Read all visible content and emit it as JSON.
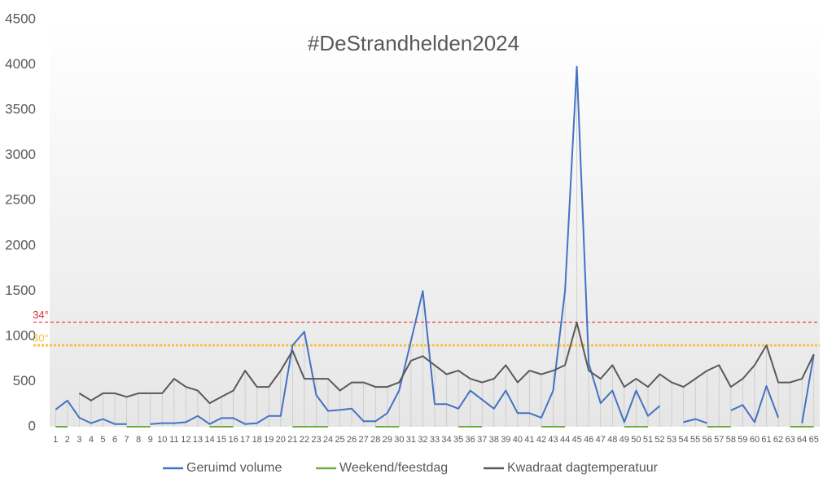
{
  "chart_data": {
    "type": "line",
    "title": "#DeStrandhelden2024",
    "categories": [
      "1",
      "2",
      "3",
      "4",
      "5",
      "6",
      "7",
      "8",
      "9",
      "10",
      "11",
      "12",
      "13",
      "14",
      "15",
      "16",
      "17",
      "18",
      "19",
      "20",
      "21",
      "22",
      "23",
      "24",
      "25",
      "26",
      "27",
      "28",
      "29",
      "30",
      "31",
      "32",
      "33",
      "34",
      "35",
      "36",
      "37",
      "38",
      "39",
      "40",
      "41",
      "42",
      "43",
      "44",
      "45",
      "46",
      "47",
      "48",
      "49",
      "50",
      "51",
      "52",
      "53",
      "54",
      "55",
      "56",
      "57",
      "58",
      "59",
      "60",
      "61",
      "62",
      "63",
      "64",
      "65"
    ],
    "series": [
      {
        "name": "Geruimd volume",
        "color": "#4472c4",
        "values": [
          190,
          290,
          100,
          40,
          85,
          30,
          30,
          null,
          30,
          40,
          40,
          50,
          120,
          30,
          95,
          95,
          30,
          40,
          120,
          120,
          900,
          1050,
          350,
          175,
          185,
          200,
          60,
          60,
          150,
          400,
          950,
          1500,
          250,
          250,
          200,
          400,
          300,
          200,
          400,
          150,
          150,
          100,
          400,
          1500,
          3980,
          700,
          260,
          400,
          50,
          400,
          120,
          230,
          null,
          50,
          85,
          40,
          null,
          180,
          240,
          50,
          450,
          100,
          null,
          40,
          800
        ]
      },
      {
        "name": "Weekend/feestdag",
        "color": "#70ad47",
        "values": [
          0,
          0,
          null,
          null,
          null,
          null,
          0,
          0,
          0,
          null,
          null,
          null,
          null,
          0,
          0,
          0,
          null,
          null,
          null,
          null,
          0,
          0,
          0,
          0,
          null,
          null,
          null,
          0,
          0,
          0,
          null,
          null,
          null,
          null,
          0,
          0,
          0,
          null,
          null,
          null,
          null,
          0,
          0,
          0,
          null,
          null,
          null,
          null,
          0,
          0,
          0,
          null,
          null,
          null,
          null,
          0,
          0,
          0,
          null,
          null,
          null,
          null,
          0,
          0,
          0
        ]
      },
      {
        "name": "Kwadraat dagtemperatuur",
        "color": "#595959",
        "values": [
          null,
          null,
          370,
          290,
          370,
          370,
          330,
          370,
          370,
          370,
          530,
          440,
          400,
          260,
          330,
          400,
          620,
          440,
          440,
          620,
          840,
          530,
          530,
          530,
          400,
          490,
          490,
          440,
          440,
          490,
          730,
          780,
          680,
          580,
          620,
          530,
          490,
          530,
          680,
          490,
          620,
          580,
          620,
          680,
          1150,
          620,
          530,
          680,
          440,
          530,
          440,
          580,
          490,
          440,
          530,
          620,
          680,
          440,
          530,
          680,
          900,
          490,
          490,
          530,
          800
        ]
      }
    ],
    "ylim": [
      0,
      4500
    ],
    "yticks": [
      0,
      500,
      1000,
      1500,
      2000,
      2500,
      3000,
      3500,
      4000,
      4500
    ],
    "annotations": [
      {
        "label": "34°",
        "value": 1156,
        "color": "#e03030"
      },
      {
        "label": "30°",
        "value": 900,
        "color": "#f5c242"
      }
    ],
    "legend": "bottom"
  }
}
